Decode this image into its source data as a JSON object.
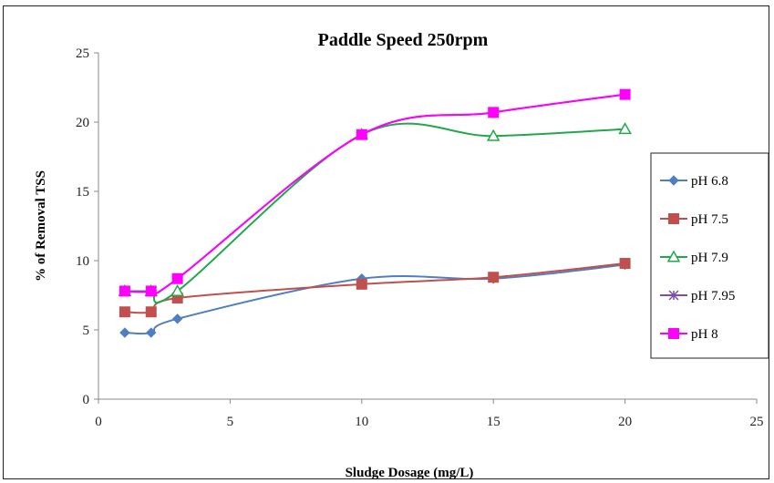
{
  "chart_data": {
    "type": "line",
    "title": "Paddle Speed 250rpm",
    "xlabel": "Sludge Dosage (mg/L)",
    "ylabel": "% of Removal TSS",
    "xlim": [
      0,
      25
    ],
    "ylim": [
      0,
      25
    ],
    "xticks": [
      0,
      5,
      10,
      15,
      20,
      25
    ],
    "yticks": [
      0,
      5,
      10,
      15,
      20,
      25
    ],
    "grid": false,
    "legend_position": "right",
    "x": [
      1,
      2,
      3,
      10,
      15,
      20
    ],
    "series": [
      {
        "name": "pH 6.8",
        "color": "#4f7fc0",
        "marker": "diamond",
        "values": [
          4.8,
          4.8,
          5.8,
          8.7,
          8.7,
          9.7
        ]
      },
      {
        "name": "pH 7.5",
        "color": "#c0504d",
        "marker": "square",
        "values": [
          6.3,
          6.3,
          7.3,
          8.3,
          8.8,
          9.8
        ]
      },
      {
        "name": "pH 7.9",
        "color": "#22a84a",
        "marker": "triangle",
        "values": [
          7.8,
          7.8,
          7.8,
          19.1,
          19.0,
          19.5
        ]
      },
      {
        "name": "pH 7.95",
        "color": "#7b4fa8",
        "marker": "star",
        "values": [
          7.8,
          7.8,
          8.7,
          19.1,
          20.7,
          22.0
        ]
      },
      {
        "name": "pH 8",
        "color": "#ff00ff",
        "marker": "square",
        "values": [
          7.8,
          7.8,
          8.7,
          19.1,
          20.7,
          22.0
        ]
      }
    ]
  }
}
